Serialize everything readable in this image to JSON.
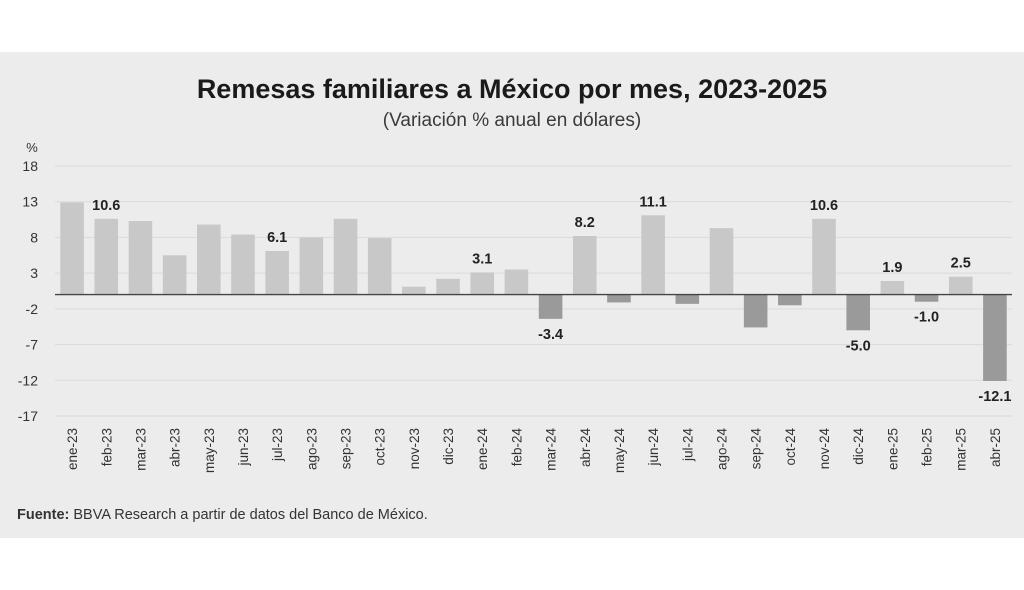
{
  "chart_data": {
    "type": "bar",
    "title": "Remesas familiares a México por mes, 2023-2025",
    "subtitle": "(Variación % anual en dólares)",
    "ylabel": "%",
    "ylim": [
      -17,
      18
    ],
    "yticks": [
      18,
      13,
      8,
      3,
      -2,
      -7,
      -12,
      -17
    ],
    "grid": true,
    "categories": [
      "ene-23",
      "feb-23",
      "mar-23",
      "abr-23",
      "may-23",
      "jun-23",
      "jul-23",
      "ago-23",
      "sep-23",
      "oct-23",
      "nov-23",
      "dic-23",
      "ene-24",
      "feb-24",
      "mar-24",
      "abr-24",
      "may-24",
      "jun-24",
      "jul-24",
      "ago-24",
      "sep-24",
      "oct-24",
      "nov-24",
      "dic-24",
      "ene-25",
      "feb-25",
      "mar-25",
      "abr-25"
    ],
    "values": [
      12.9,
      10.6,
      10.3,
      5.5,
      9.8,
      8.4,
      6.1,
      8.0,
      10.6,
      7.9,
      1.1,
      2.2,
      3.1,
      3.5,
      -3.4,
      8.2,
      -1.1,
      11.1,
      -1.3,
      9.3,
      -4.6,
      -1.5,
      10.6,
      -5.0,
      1.9,
      -1.0,
      2.5,
      -12.1
    ],
    "data_labels": {
      "1": "10.6",
      "6": "6.1",
      "12": "3.1",
      "14": "-3.4",
      "15": "8.2",
      "17": "11.1",
      "22": "10.6",
      "23": "-5.0",
      "24": "1.9",
      "25": "-1.0",
      "26": "2.5",
      "27": "-12.1"
    },
    "colors": {
      "positive": "#c8c8c8",
      "negative": "#9a9a9a",
      "grid": "#dadada",
      "axis": "#444444"
    }
  },
  "source": {
    "label": "Fuente:",
    "text": " BBVA Research a partir de datos del Banco de México."
  }
}
